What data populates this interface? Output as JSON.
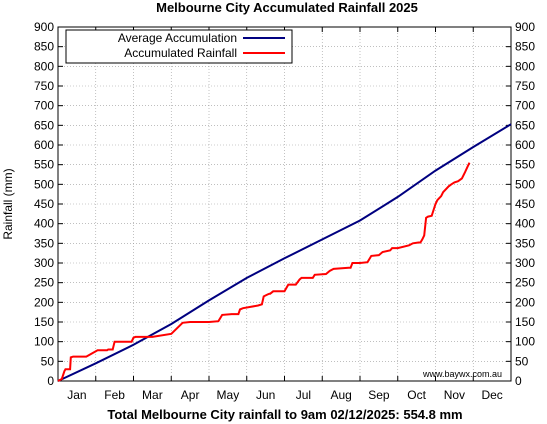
{
  "chart_data": {
    "type": "line",
    "title": "Melbourne City Accumulated Rainfall 2025",
    "footer": "Total Melbourne City rainfall to 9am 02/12/2025: 554.8 mm",
    "ylabel": "Rainfall (mm)",
    "xlabel": "",
    "ylim": [
      0,
      900
    ],
    "xlim": [
      0,
      12
    ],
    "y_ticks": [
      0,
      50,
      100,
      150,
      200,
      250,
      300,
      350,
      400,
      450,
      500,
      550,
      600,
      650,
      700,
      750,
      800,
      850,
      900
    ],
    "x_tick_labels": [
      "Jan",
      "Feb",
      "Mar",
      "Apr",
      "May",
      "Jun",
      "Jul",
      "Aug",
      "Sep",
      "Oct",
      "Nov",
      "Dec"
    ],
    "legend_position": "top-left",
    "credit": "www.baywx.com.au",
    "colors": {
      "average": "#000080",
      "accumulated": "#ff0000",
      "grid": "#999999"
    },
    "series": [
      {
        "name": "Average Accumulation",
        "color": "#000080",
        "x": [
          0,
          1,
          2,
          3,
          4,
          5,
          6,
          7,
          8,
          9,
          10,
          11,
          12
        ],
        "y": [
          0,
          45,
          92,
          145,
          205,
          262,
          312,
          360,
          408,
          468,
          535,
          595,
          653
        ]
      },
      {
        "name": "Accumulated Rainfall",
        "color": "#ff0000",
        "x": [
          0,
          0.1,
          0.17,
          0.17,
          0.2,
          0.32,
          0.34,
          0.4,
          0.45,
          0.75,
          1.05,
          1.3,
          1.33,
          1.45,
          1.5,
          1.95,
          2.0,
          2.05,
          2.1,
          2.2,
          2.5,
          3.0,
          3.3,
          3.5,
          3.5,
          3.9,
          4.0,
          4.25,
          4.35,
          4.6,
          4.68,
          4.78,
          4.82,
          4.9,
          5.3,
          5.4,
          5.45,
          5.55,
          5.6,
          5.62,
          5.7,
          6.0,
          6.1,
          6.3,
          6.4,
          6.45,
          6.75,
          6.8,
          7.1,
          7.2,
          7.3,
          7.7,
          7.75,
          7.8,
          8.0,
          8.2,
          8.3,
          8.5,
          8.6,
          8.8,
          8.85,
          9.0,
          9.3,
          9.4,
          9.55,
          9.6,
          9.65,
          9.7,
          9.75,
          9.8,
          9.9,
          10.0,
          10.05,
          10.15,
          10.2,
          10.35,
          10.42,
          10.5,
          10.6,
          10.7,
          10.78,
          10.85,
          10.9
        ],
        "y": [
          0,
          5,
          25,
          25,
          30,
          30,
          60,
          62,
          62,
          62,
          78,
          78,
          80,
          80,
          100,
          100,
          110,
          112,
          112,
          112,
          112,
          120,
          148,
          150,
          150,
          150,
          150,
          152,
          168,
          170,
          170,
          170,
          182,
          185,
          192,
          195,
          215,
          220,
          222,
          222,
          228,
          228,
          245,
          245,
          258,
          262,
          262,
          270,
          272,
          280,
          285,
          288,
          288,
          300,
          300,
          302,
          318,
          320,
          328,
          332,
          338,
          338,
          345,
          350,
          352,
          352,
          360,
          370,
          415,
          418,
          420,
          450,
          460,
          470,
          480,
          495,
          500,
          505,
          508,
          515,
          530,
          545,
          555
        ]
      }
    ]
  }
}
